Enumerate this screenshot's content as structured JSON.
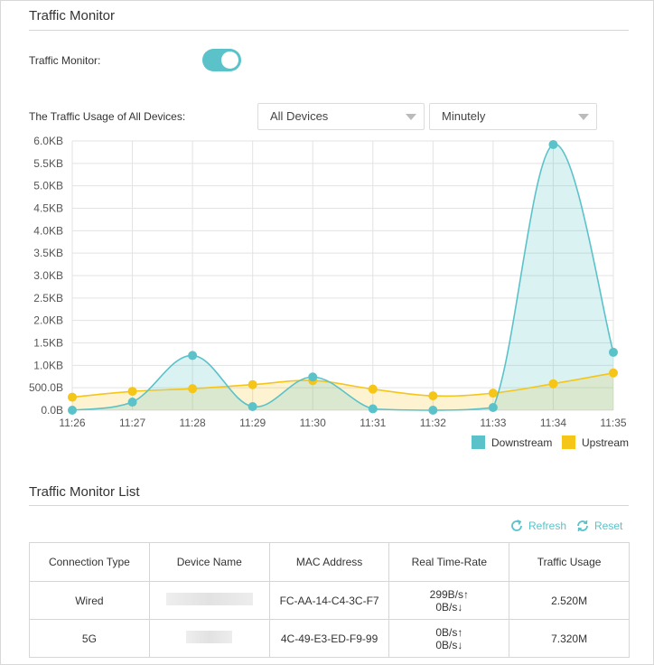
{
  "header": {
    "title": "Traffic Monitor"
  },
  "monitor": {
    "label": "Traffic Monitor:",
    "enabled": true,
    "toggle_color": "#5bc2c9"
  },
  "usage": {
    "label": "The Traffic Usage of All Devices:",
    "device_select": "All Devices",
    "interval_select": "Minutely"
  },
  "chart_data": {
    "type": "area",
    "x": [
      "11:26",
      "11:27",
      "11:28",
      "11:29",
      "11:30",
      "11:31",
      "11:32",
      "11:33",
      "11:34",
      "11:35"
    ],
    "ylim": [
      0,
      6.0
    ],
    "y_ticks": [
      "0.0B",
      "500.0B",
      "1.0KB",
      "1.5KB",
      "2.0KB",
      "2.5KB",
      "3.0KB",
      "3.5KB",
      "4.0KB",
      "4.5KB",
      "5.0KB",
      "5.5KB",
      "6.0KB"
    ],
    "grid": true,
    "legend_position": "bottom-right",
    "series": [
      {
        "name": "Downstream",
        "color": "#5bc2c9",
        "fill": "rgba(91,194,201,0.22)",
        "values": [
          0.0,
          0.18,
          1.22,
          0.08,
          0.74,
          0.03,
          0.0,
          0.06,
          5.92,
          1.29
        ]
      },
      {
        "name": "Upstream",
        "color": "#f5c518",
        "fill": "rgba(245,197,24,0.20)",
        "values": [
          0.29,
          0.42,
          0.48,
          0.57,
          0.66,
          0.47,
          0.32,
          0.38,
          0.59,
          0.83
        ]
      }
    ]
  },
  "list": {
    "title": "Traffic Monitor List",
    "refresh_label": "Refresh",
    "reset_label": "Reset",
    "accent": "#5bc2c9",
    "columns": [
      "Connection Type",
      "Device Name",
      "MAC Address",
      "Real Time-Rate",
      "Traffic Usage"
    ],
    "rows": [
      {
        "type": "Wired",
        "mac": "FC-AA-14-C4-3C-F7",
        "rate_up": "299B/s↑",
        "rate_down": "0B/s↓",
        "usage": "2.520M"
      },
      {
        "type": "5G",
        "mac": "4C-49-E3-ED-F9-99",
        "rate_up": "0B/s↑",
        "rate_down": "0B/s↓",
        "usage": "7.320M"
      }
    ]
  }
}
